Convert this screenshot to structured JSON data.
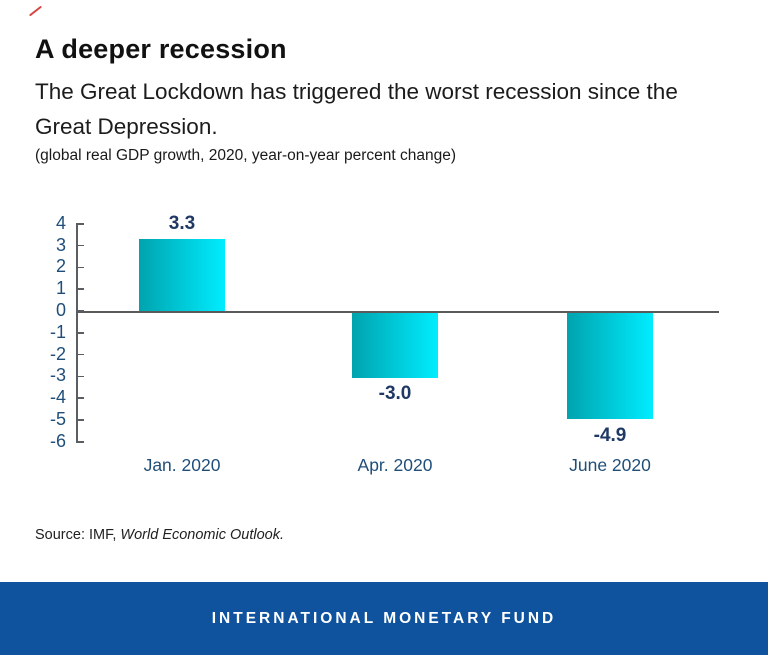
{
  "header": {
    "title": "A deeper recession",
    "subtitle_lines": [
      "The Great Lockdown has triggered the worst recession since the",
      "Great Depression."
    ],
    "note": "(global real GDP growth, 2020, year-on-year percent change)"
  },
  "chart_data": {
    "type": "bar",
    "title": "A deeper recession",
    "categories": [
      "Jan. 2020",
      "Apr. 2020",
      "June 2020"
    ],
    "values": [
      3.3,
      -3.0,
      -4.9
    ],
    "value_labels": [
      "3.3",
      "-3.0",
      "-4.9"
    ],
    "xlabel": "",
    "ylabel": "",
    "ylim": [
      -6,
      4
    ],
    "y_ticks": [
      4,
      3,
      2,
      1,
      0,
      -1,
      -2,
      -3,
      -4,
      -5,
      -6
    ],
    "grid": false,
    "legend": false,
    "bar_gradient_left": "#00A3AE",
    "bar_gradient_right": "#00EDFF",
    "axis_color": "#5a5e63",
    "tick_label_color": "#1F4E79",
    "value_label_color": "#1F3864"
  },
  "source": {
    "prefix": "Source: IMF, ",
    "publication": "World Economic Outlook."
  },
  "footer": {
    "text": "INTERNATIONAL MONETARY FUND",
    "background": "#0F529E"
  }
}
